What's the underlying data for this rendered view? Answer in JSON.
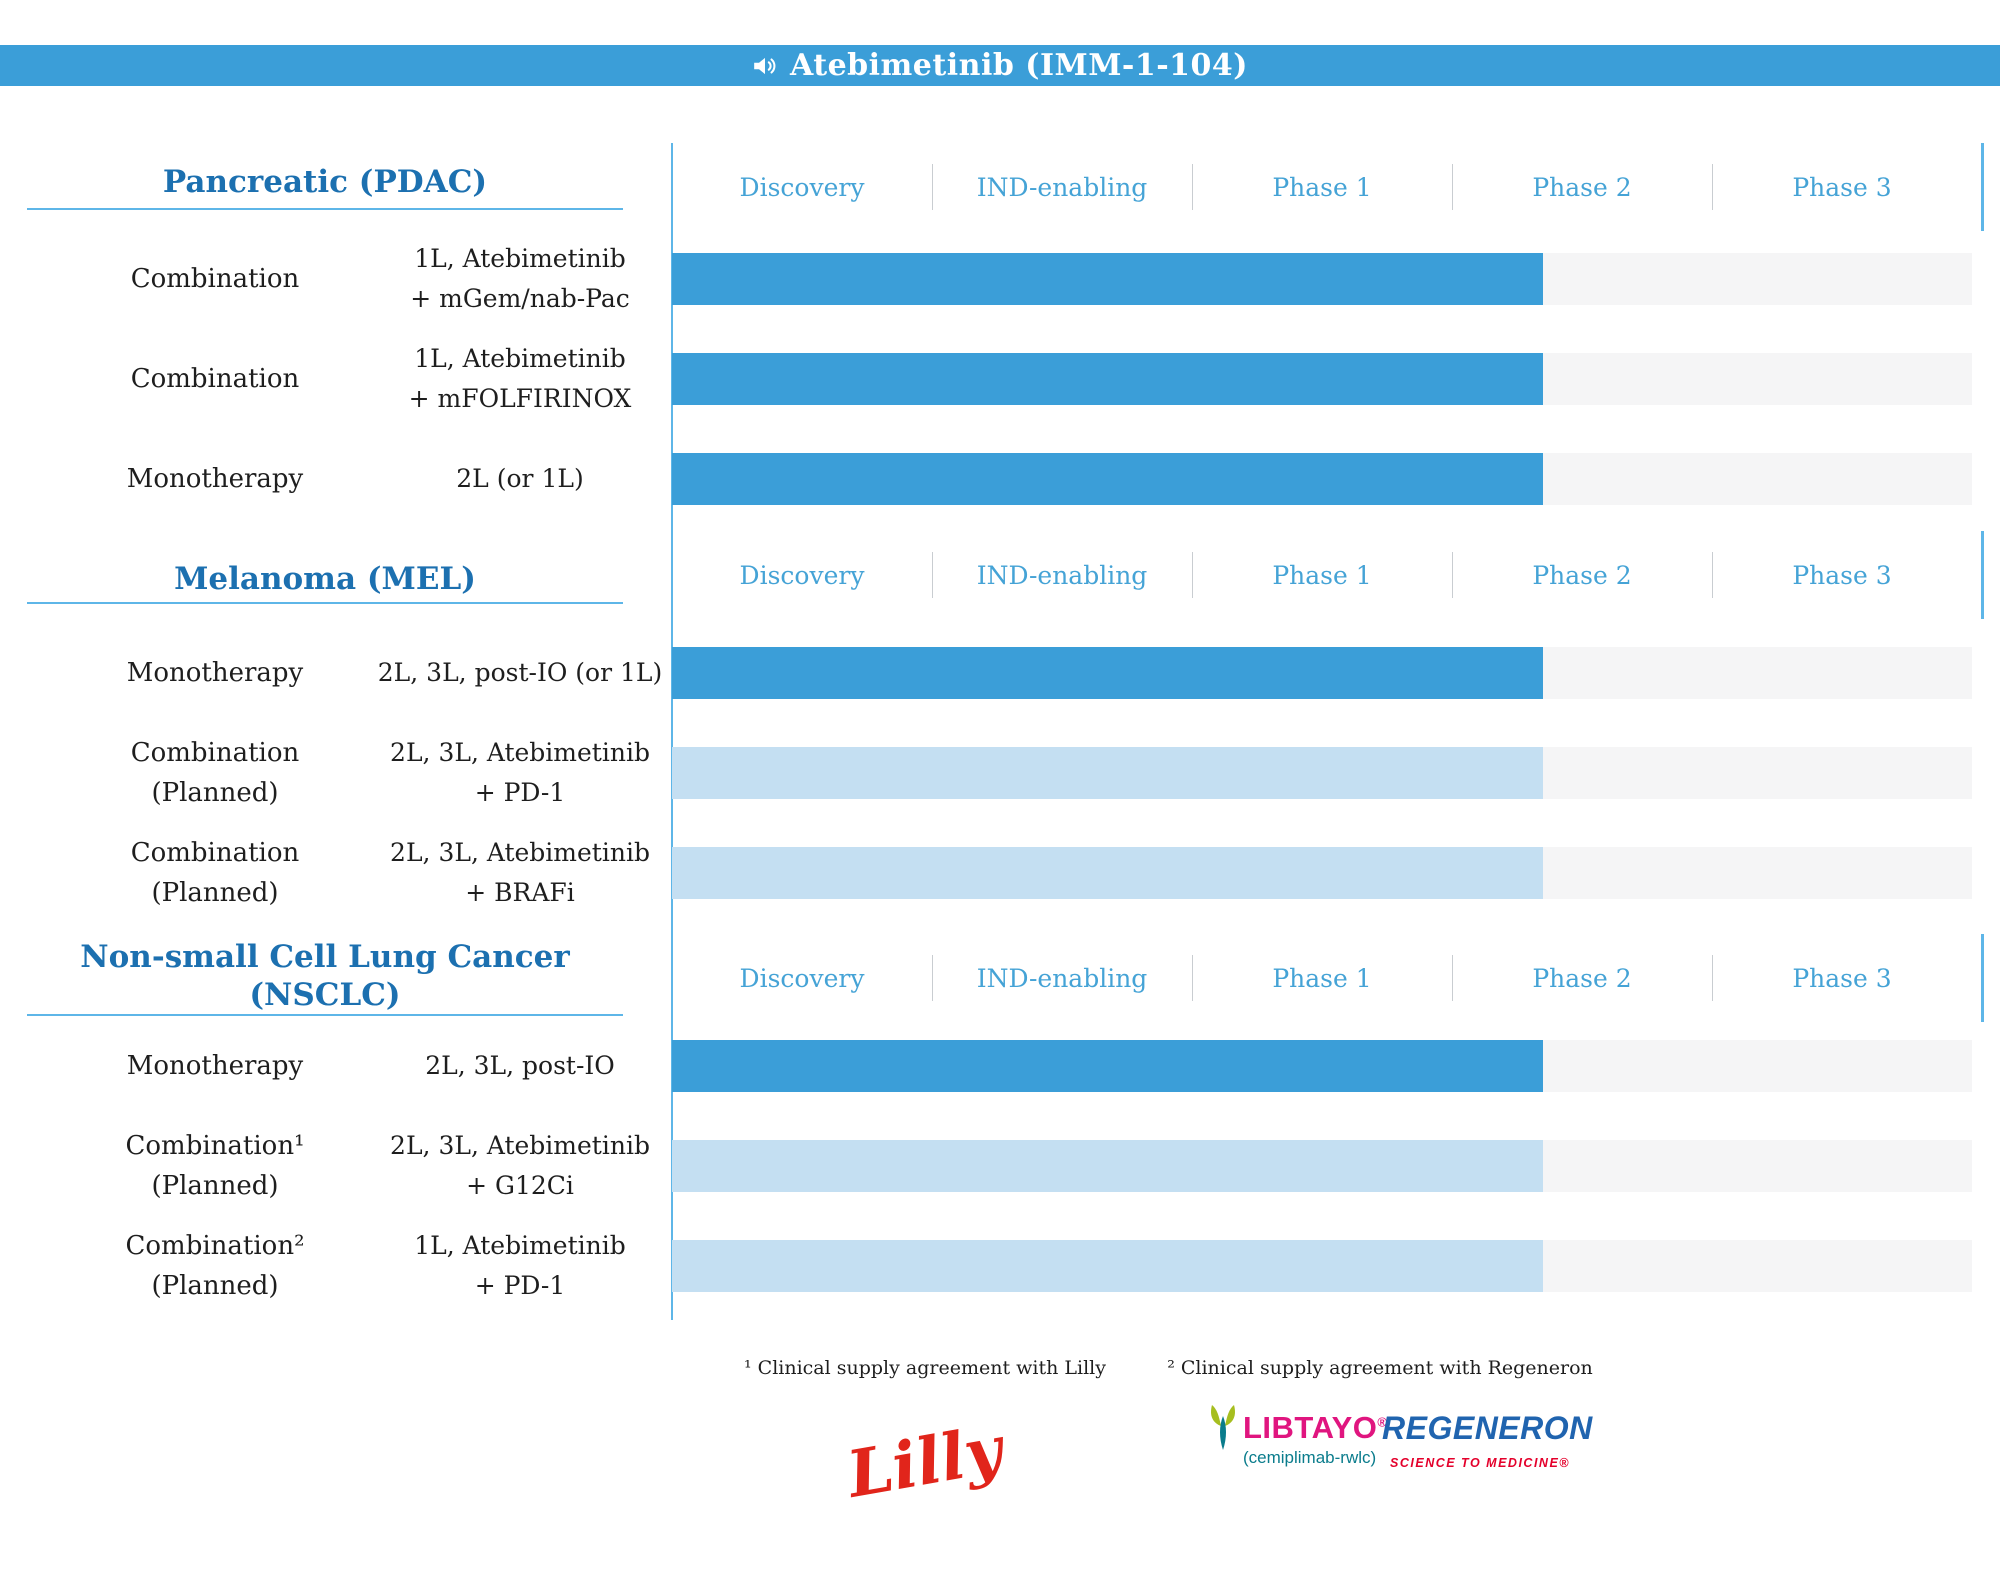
{
  "header": {
    "icon": "speaker-icon",
    "title": "Atebimetinib (IMM-1-104)"
  },
  "phases": [
    "Discovery",
    "IND-enabling",
    "Phase 1",
    "Phase 2",
    "Phase 3"
  ],
  "colors": {
    "header-bg": "#3B9ED8",
    "bar-active": "#3B9ED8",
    "bar-planned": "#C4DFF2",
    "track": "#F5F5F6",
    "line-blue": "#5EB6E8",
    "phase-label": "#45A3D6",
    "section-title": "#1C70B0",
    "text": "#1E1E1E"
  },
  "sections": [
    {
      "title": "Pancreatic (PDAC)",
      "rows": [
        {
          "type": "Combination",
          "note": "",
          "detail": "1L, Atebimetinib\n+ mGem/nab-Pac",
          "status": "active",
          "progress_pct": 67
        },
        {
          "type": "Combination",
          "note": "",
          "detail": "1L, Atebimetinib\n+ mFOLFIRINOX",
          "status": "active",
          "progress_pct": 67
        },
        {
          "type": "Monotherapy",
          "note": "",
          "detail": "2L (or 1L)",
          "status": "active",
          "progress_pct": 67
        }
      ]
    },
    {
      "title": "Melanoma (MEL)",
      "rows": [
        {
          "type": "Monotherapy",
          "note": "",
          "detail": "2L, 3L, post-IO (or 1L)",
          "status": "active",
          "progress_pct": 67
        },
        {
          "type": "Combination",
          "note": "(Planned)",
          "detail": "2L, 3L, Atebimetinib\n+ PD-1",
          "status": "planned",
          "progress_pct": 67
        },
        {
          "type": "Combination",
          "note": "(Planned)",
          "detail": "2L, 3L, Atebimetinib\n+ BRAFi",
          "status": "planned",
          "progress_pct": 67
        }
      ]
    },
    {
      "title": "Non-small Cell Lung Cancer (NSCLC)",
      "rows": [
        {
          "type": "Monotherapy",
          "note": "",
          "detail": "2L, 3L, post-IO",
          "status": "active",
          "progress_pct": 67
        },
        {
          "type": "Combination¹",
          "note": "(Planned)",
          "detail": "2L, 3L, Atebimetinib\n+ G12Ci",
          "status": "planned",
          "progress_pct": 67
        },
        {
          "type": "Combination²",
          "note": "(Planned)",
          "detail": "1L, Atebimetinib\n+ PD-1",
          "status": "planned",
          "progress_pct": 67
        }
      ]
    }
  ],
  "footnotes": [
    "¹ Clinical supply agreement with Lilly",
    "² Clinical supply agreement with Regeneron"
  ],
  "logos": {
    "lilly": "Lilly",
    "libtayo": {
      "word": "LIBTAYO",
      "reg": "®",
      "sub": "(cemiplimab-rwlc)"
    },
    "regeneron": {
      "word": "REGENERON",
      "tagline": "SCIENCE TO MEDICINE®"
    }
  },
  "chart_data": {
    "type": "bar",
    "orientation": "horizontal",
    "title": "Atebimetinib (IMM-1-104) clinical pipeline",
    "x_axis_phases": [
      "Discovery",
      "IND-enabling",
      "Phase 1",
      "Phase 2",
      "Phase 3"
    ],
    "progress_note": "Every bar starts at Discovery and ends about one-third of the way into Phase 2 (0.67 of the full 5-phase axis).",
    "groups": [
      {
        "indication": "Pancreatic (PDAC)",
        "bars": [
          {
            "label": "Combination — 1L, Atebimetinib + mGem/nab-Pac",
            "status": "active",
            "end_fraction": 0.67
          },
          {
            "label": "Combination — 1L, Atebimetinib + mFOLFIRINOX",
            "status": "active",
            "end_fraction": 0.67
          },
          {
            "label": "Monotherapy — 2L (or 1L)",
            "status": "active",
            "end_fraction": 0.67
          }
        ]
      },
      {
        "indication": "Melanoma (MEL)",
        "bars": [
          {
            "label": "Monotherapy — 2L, 3L, post-IO (or 1L)",
            "status": "active",
            "end_fraction": 0.67
          },
          {
            "label": "Combination (Planned) — 2L, 3L, Atebimetinib + PD-1",
            "status": "planned",
            "end_fraction": 0.67
          },
          {
            "label": "Combination (Planned) — 2L, 3L, Atebimetinib + BRAFi",
            "status": "planned",
            "end_fraction": 0.67
          }
        ]
      },
      {
        "indication": "Non-small Cell Lung Cancer (NSCLC)",
        "bars": [
          {
            "label": "Monotherapy — 2L, 3L, post-IO",
            "status": "active",
            "end_fraction": 0.67
          },
          {
            "label": "Combination¹ (Planned) — 2L, 3L, Atebimetinib + G12Ci",
            "status": "planned",
            "end_fraction": 0.67
          },
          {
            "label": "Combination² (Planned) — 1L, Atebimetinib + PD-1",
            "status": "planned",
            "end_fraction": 0.67
          }
        ]
      }
    ]
  }
}
